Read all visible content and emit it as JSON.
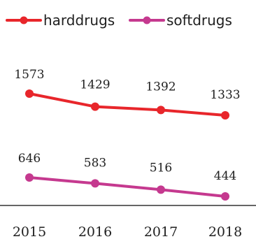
{
  "chart_data": {
    "type": "line",
    "categories": [
      "2015",
      "2016",
      "2017",
      "2018"
    ],
    "series": [
      {
        "name": "harddrugs",
        "values": [
          1573,
          1429,
          1392,
          1333
        ],
        "color": "#e8262b"
      },
      {
        "name": "softdrugs",
        "values": [
          646,
          583,
          516,
          444
        ],
        "color": "#c5398f"
      }
    ],
    "title": "",
    "xlabel": "",
    "ylabel": "",
    "legend": "top",
    "grid": false,
    "axis_line_color": "#333333",
    "text_color": "#1f1f1f"
  }
}
